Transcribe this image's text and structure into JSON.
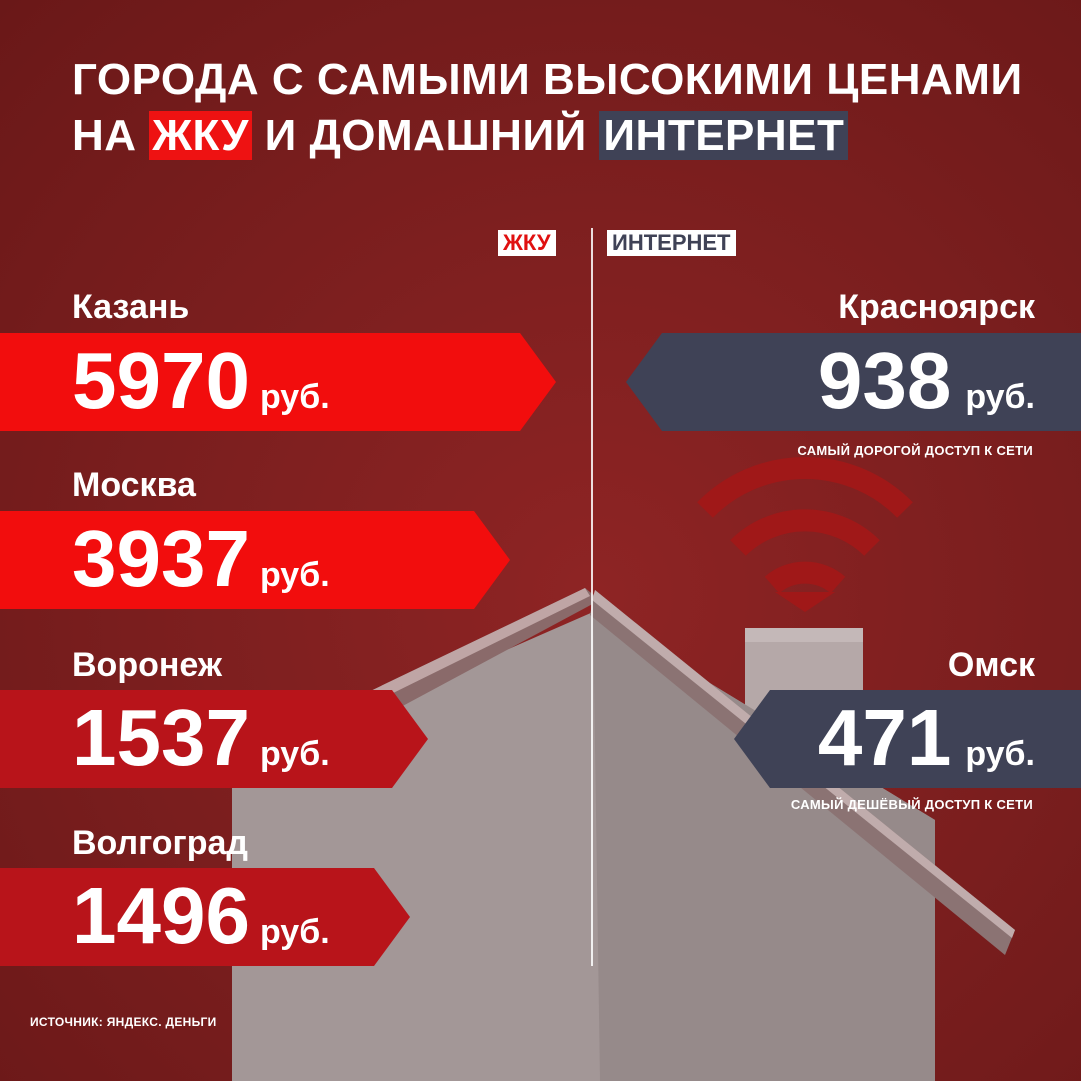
{
  "title": {
    "line1": "ГОРОДА С САМЫМИ ВЫСОКИМИ ЦЕНАМИ",
    "line2_prefix": "НА ",
    "line2_highlight_red": "ЖКУ",
    "line2_middle": " И ДОМАШНИЙ ",
    "line2_highlight_navy": "ИНТЕРНЕТ"
  },
  "columns": {
    "left_label": "ЖКУ",
    "right_label": "ИНТЕРНЕТ"
  },
  "zhku": [
    {
      "city": "Казань",
      "price": "5970",
      "unit": "руб."
    },
    {
      "city": "Москва",
      "price": "3937",
      "unit": "руб."
    },
    {
      "city": "Воронеж",
      "price": "1537",
      "unit": "руб."
    },
    {
      "city": "Волгоград",
      "price": "1496",
      "unit": "руб."
    }
  ],
  "internet": [
    {
      "city": "Красноярск",
      "price": "938",
      "unit": "руб.",
      "caption": "САМЫЙ ДОРОГОЙ ДОСТУП К СЕТИ"
    },
    {
      "city": "Омск",
      "price": "471",
      "unit": "руб.",
      "caption": "САМЫЙ ДЕШЁВЫЙ ДОСТУП К СЕТИ"
    }
  ],
  "source": "ИСТОЧНИК: ЯНДЕКС. ДЕНЬГИ",
  "colors": {
    "background": "#7a1e1e",
    "accent_red": "#f20d0d",
    "dark_red": "#b8141a",
    "navy": "#3f4256"
  },
  "icons": {
    "wifi": "wifi-icon",
    "house": "house-illustration"
  }
}
